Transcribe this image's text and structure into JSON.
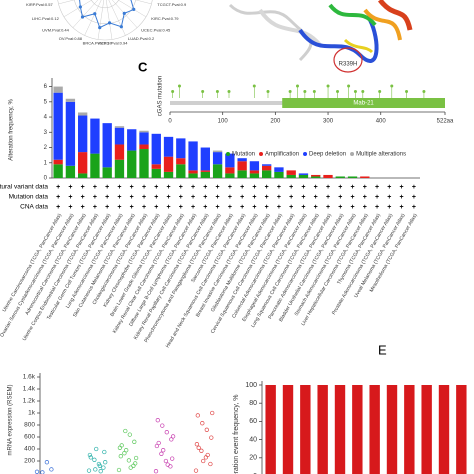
{
  "structure": {
    "label": "R339H"
  },
  "chart_data": [
    {
      "type": "radar",
      "categories": [
        "TCGCT.Pval:0.9",
        "KIRC.Pval:0.79",
        "UCEC.Pval:0.45",
        "LUAD.Pval:0.2",
        "PCPG.Pval:0.94",
        "BRCA.Pval:0.17",
        "OV.Pval:0.88",
        "UVM.Pval:0.44",
        "LIHC.Pval:0.12",
        "KIRP.Pval:0.57"
      ],
      "values": [
        0.55,
        0.7,
        0.6,
        0.8,
        0.65,
        0.75,
        0.5,
        0.7,
        0.6,
        0.55
      ],
      "color": "#3a7bd5",
      "ylim": [
        0,
        1
      ]
    },
    {
      "type": "lollipop",
      "panel": "C",
      "ylabel": "cGAS mutation",
      "domain": {
        "name": "Mab-21",
        "start": 213,
        "end": 522
      },
      "x": [
        5,
        18,
        62,
        90,
        112,
        160,
        186,
        228,
        242,
        256,
        274,
        300,
        318,
        339,
        352,
        366,
        398,
        421,
        449,
        482
      ],
      "values": [
        1,
        2,
        1,
        1,
        1,
        2,
        1,
        1,
        2,
        1,
        1,
        2,
        1,
        2,
        1,
        1,
        1,
        2,
        1,
        1
      ],
      "color": "#7ac143",
      "xlim": [
        0,
        522
      ],
      "ylim": [
        0,
        2
      ],
      "xticks": [
        0,
        100,
        200,
        300,
        400,
        {
          "value": 522,
          "label": "522aa"
        }
      ]
    },
    {
      "type": "stacked_bar",
      "ylabel": "Alteration frequency, %",
      "categories": [
        "Uterine Carcinosarcoma (TCGA, PanCancer Atlas)",
        "Ovarian Serous Cystadenocarcinoma (TCGA, PanCancer Atlas)",
        "Adrenocortical Carcinoma (TCGA, PanCancer Atlas)",
        "Uterine Corpus Endometrial Carcinoma (TCGA, PanCancer Atlas)",
        "Testicular Germ Cell Tumors (TCGA, PanCancer Atlas)",
        "Lung Adenocarcinoma (TCGA, PanCancer Atlas)",
        "Skin Cutaneous Melanoma (TCGA, PanCancer Atlas)",
        "Cholangiocarcinoma (TCGA, PanCancer Atlas)",
        "Kidney Chromophobe (TCGA, PanCancer Atlas)",
        "Brain Lower Grade Glioma (TCGA, PanCancer Atlas)",
        "Kidney Renal Clear Cell Carcinoma (TCGA, PanCancer Atlas)",
        "Diffuse Large B-Cell Lymphoma (TCGA, PanCancer Atlas)",
        "Kidney Renal Papillary Cell Carcinoma (TCGA, PanCancer Atlas)",
        "Pheochromocytoma and Paraganglioma (TCGA, PanCancer Atlas)",
        "Sarcoma (TCGA, PanCancer Atlas)",
        "Head and Neck Squamous Cell Carcinoma (TCGA, PanCancer Atlas)",
        "Breast Invasive Carcinoma (TCGA, PanCancer Atlas)",
        "Glioblastoma Multiforme (TCGA, PanCancer Atlas)",
        "Cervical Squamous Cell Carcinoma (TCGA, PanCancer Atlas)",
        "Colorectal Adenocarcinoma (TCGA, PanCancer Atlas)",
        "Esophageal Adenocarcinoma (TCGA, PanCancer Atlas)",
        "Lung Squamous Cell Carcinoma (TCGA, PanCancer Atlas)",
        "Pancreatic Adenocarcinoma (TCGA, PanCancer Atlas)",
        "Bladder Urothelial Carcinoma (TCGA, PanCancer Atlas)",
        "Stomach Adenocarcinoma (TCGA, PanCancer Atlas)",
        "Liver Hepatocellular Carcinoma (TCGA, PanCancer Atlas)",
        "Thymoma (TCGA, PanCancer Atlas)",
        "Prostate Adenocarcinoma (TCGA, PanCancer Atlas)",
        "Uveal Melanoma (TCGA, PanCancer Atlas)",
        "Mesothelioma (TCGA, PanCancer Atlas)"
      ],
      "series": [
        {
          "name": "Mutation",
          "color": "#1aa31a",
          "values": [
            0.9,
            0.8,
            0.3,
            1.6,
            0.7,
            1.2,
            1.8,
            1.9,
            0.6,
            0.4,
            0.9,
            0.3,
            0.4,
            0.9,
            0.3,
            0.5,
            0.3,
            0.5,
            0.4,
            0.2,
            0.2,
            0.1,
            0,
            0.1,
            0.1,
            0,
            0,
            0,
            0,
            0
          ]
        },
        {
          "name": "Amplification",
          "color": "#e8201c",
          "values": [
            0.3,
            0,
            1.4,
            0,
            0,
            1,
            0,
            0.3,
            0.3,
            1,
            0.4,
            0.2,
            0.1,
            0,
            0.4,
            0.6,
            0.2,
            0.3,
            0,
            0.3,
            0,
            0.1,
            0.2,
            0,
            0,
            0.1,
            0,
            0,
            0,
            0
          ]
        },
        {
          "name": "Deep deletion",
          "color": "#1f3fff",
          "values": [
            4.4,
            4.2,
            2.4,
            2.3,
            2.9,
            1.1,
            1.4,
            0.8,
            2,
            1.3,
            1.3,
            1.9,
            1.5,
            0.8,
            0.9,
            0.2,
            0.6,
            0.1,
            0.3,
            0,
            0.1,
            0,
            0,
            0,
            0,
            0,
            0,
            0,
            0,
            0
          ]
        },
        {
          "name": "Multiple alterations",
          "color": "#aaaaaa",
          "values": [
            0.4,
            0.2,
            0.2,
            0,
            0,
            0.1,
            0,
            0.1,
            0,
            0,
            0,
            0,
            0,
            0.1,
            0,
            0,
            0,
            0,
            0,
            0,
            0,
            0,
            0,
            0,
            0,
            0,
            0,
            0,
            0,
            0
          ]
        }
      ],
      "ylim": [
        0,
        6.3
      ],
      "yticks": [
        0,
        1,
        2,
        3,
        4,
        5,
        6
      ],
      "legend": "top-right",
      "data_rows": [
        {
          "label": "Structural variant data",
          "marks": [
            "+",
            "+",
            "+",
            "+",
            "+",
            "+",
            "+",
            "+",
            "+",
            "+",
            "+",
            "+",
            "+",
            "+",
            "+",
            "+",
            "+",
            "+",
            "+",
            "+",
            "+",
            "+",
            "+",
            "+",
            "+",
            "+",
            "+",
            "+",
            "+",
            "+"
          ]
        },
        {
          "label": "Mutation data",
          "marks": [
            "+",
            "+",
            "+",
            "+",
            "+",
            "+",
            "+",
            "+",
            "+",
            "+",
            "+",
            "+",
            "+",
            "+",
            "+",
            "+",
            "+",
            "+",
            "+",
            "+",
            "+",
            "+",
            "+",
            "+",
            "+",
            "+",
            "+",
            "+",
            "+",
            "+"
          ]
        },
        {
          "label": "CNA data",
          "marks": [
            "+",
            "+",
            "+",
            "+",
            "+",
            "+",
            "+",
            "+",
            "+",
            "+",
            "+",
            "+",
            "+",
            "+",
            "+",
            "+",
            "+",
            "+",
            "+",
            "+",
            "+",
            "+",
            "+",
            "+",
            "+",
            "+",
            "+",
            "+",
            "+",
            "+"
          ]
        }
      ]
    },
    {
      "type": "strip",
      "ylabel": "mRNA expression (RSEM)",
      "series": [
        {
          "color": "#3a6fd8",
          "values": [
            20,
            60,
            180,
            10
          ]
        },
        {
          "color": "#2ab0a8",
          "values": [
            40,
            90,
            150,
            220,
            300,
            350,
            120,
            60,
            260,
            180,
            30,
            400
          ]
        },
        {
          "color": "#5cc85c",
          "values": [
            50,
            120,
            210,
            330,
            420,
            520,
            640,
            700,
            280,
            160,
            90,
            380,
            460,
            250
          ]
        },
        {
          "color": "#c83fb0",
          "values": [
            30,
            110,
            200,
            320,
            450,
            560,
            680,
            790,
            880,
            240,
            140,
            380,
            500,
            610
          ]
        },
        {
          "color": "#e04848",
          "values": [
            40,
            150,
            260,
            370,
            480,
            590,
            720,
            830,
            960,
            1000,
            300,
            200,
            420
          ]
        }
      ],
      "ylim": [
        0,
        1600
      ],
      "yticks": [
        {
          "value": 200,
          "label": "200"
        },
        {
          "value": 400,
          "label": "400"
        },
        {
          "value": 600,
          "label": "600"
        },
        {
          "value": 800,
          "label": "800"
        },
        {
          "value": 1000,
          "label": "1k"
        },
        {
          "value": 1200,
          "label": "1.2k"
        },
        {
          "value": 1400,
          "label": "1.4k"
        },
        {
          "value": 1600,
          "label": "1.6k"
        }
      ]
    },
    {
      "type": "bar",
      "panel": "E",
      "ylabel": "Alteration event frequency, %",
      "categories": [
        null,
        null,
        null,
        null,
        null,
        null,
        null,
        null,
        null,
        null,
        null,
        null
      ],
      "values": [
        100,
        100,
        100,
        100,
        100,
        100,
        100,
        100,
        100,
        100,
        100,
        100
      ],
      "color": "#d7191c",
      "ylim": [
        0,
        100
      ],
      "yticks": [
        0,
        20,
        40,
        60,
        80,
        100
      ]
    }
  ]
}
